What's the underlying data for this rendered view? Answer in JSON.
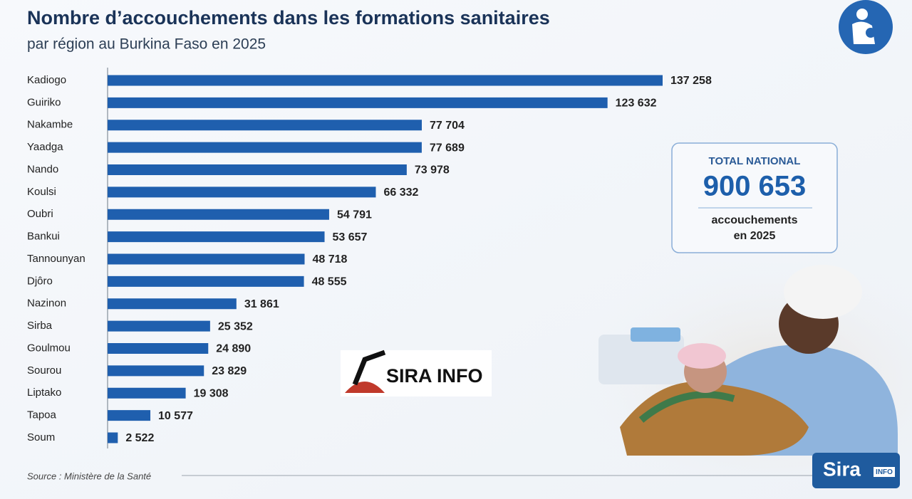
{
  "chart_data": {
    "type": "bar",
    "orientation": "horizontal",
    "title": "Nombre d’accouchements dans les formations sanitaires",
    "subtitle": "par région au Burkina Faso en 2025",
    "categories": [
      "Kadiogo",
      "Guiriko",
      "Nakambe",
      "Yaadga",
      "Nando",
      "Koulsi",
      "Oubri",
      "Bankui",
      "Tannounyan",
      "Djôro",
      "Nazinon",
      "Sirba",
      "Goulmou",
      "Sourou",
      "Liptako",
      "Tapoa",
      "Soum"
    ],
    "values": [
      137258,
      123632,
      77704,
      77689,
      73978,
      66332,
      54791,
      53657,
      48718,
      48555,
      31861,
      25352,
      24890,
      23829,
      19308,
      10577,
      2522
    ],
    "value_labels": [
      "137 258",
      "123 632",
      "77 704",
      "77 689",
      "73 978",
      "66 332",
      "54 791",
      "53 657",
      "48 718",
      "48 555",
      "31 861",
      "25 352",
      "24 890",
      "23 829",
      "19 308",
      "10 577",
      "2 522"
    ],
    "color": "#1f5fae"
  },
  "total_box": {
    "heading": "TOTAL NATIONAL",
    "total": "900 653",
    "caption": [
      "accouchements",
      "en 2025"
    ]
  },
  "source": "Source : Ministère de la Santé",
  "watermark": "SIRA INFO",
  "corner_logo": {
    "name": "Sira",
    "badge": "INFO"
  }
}
